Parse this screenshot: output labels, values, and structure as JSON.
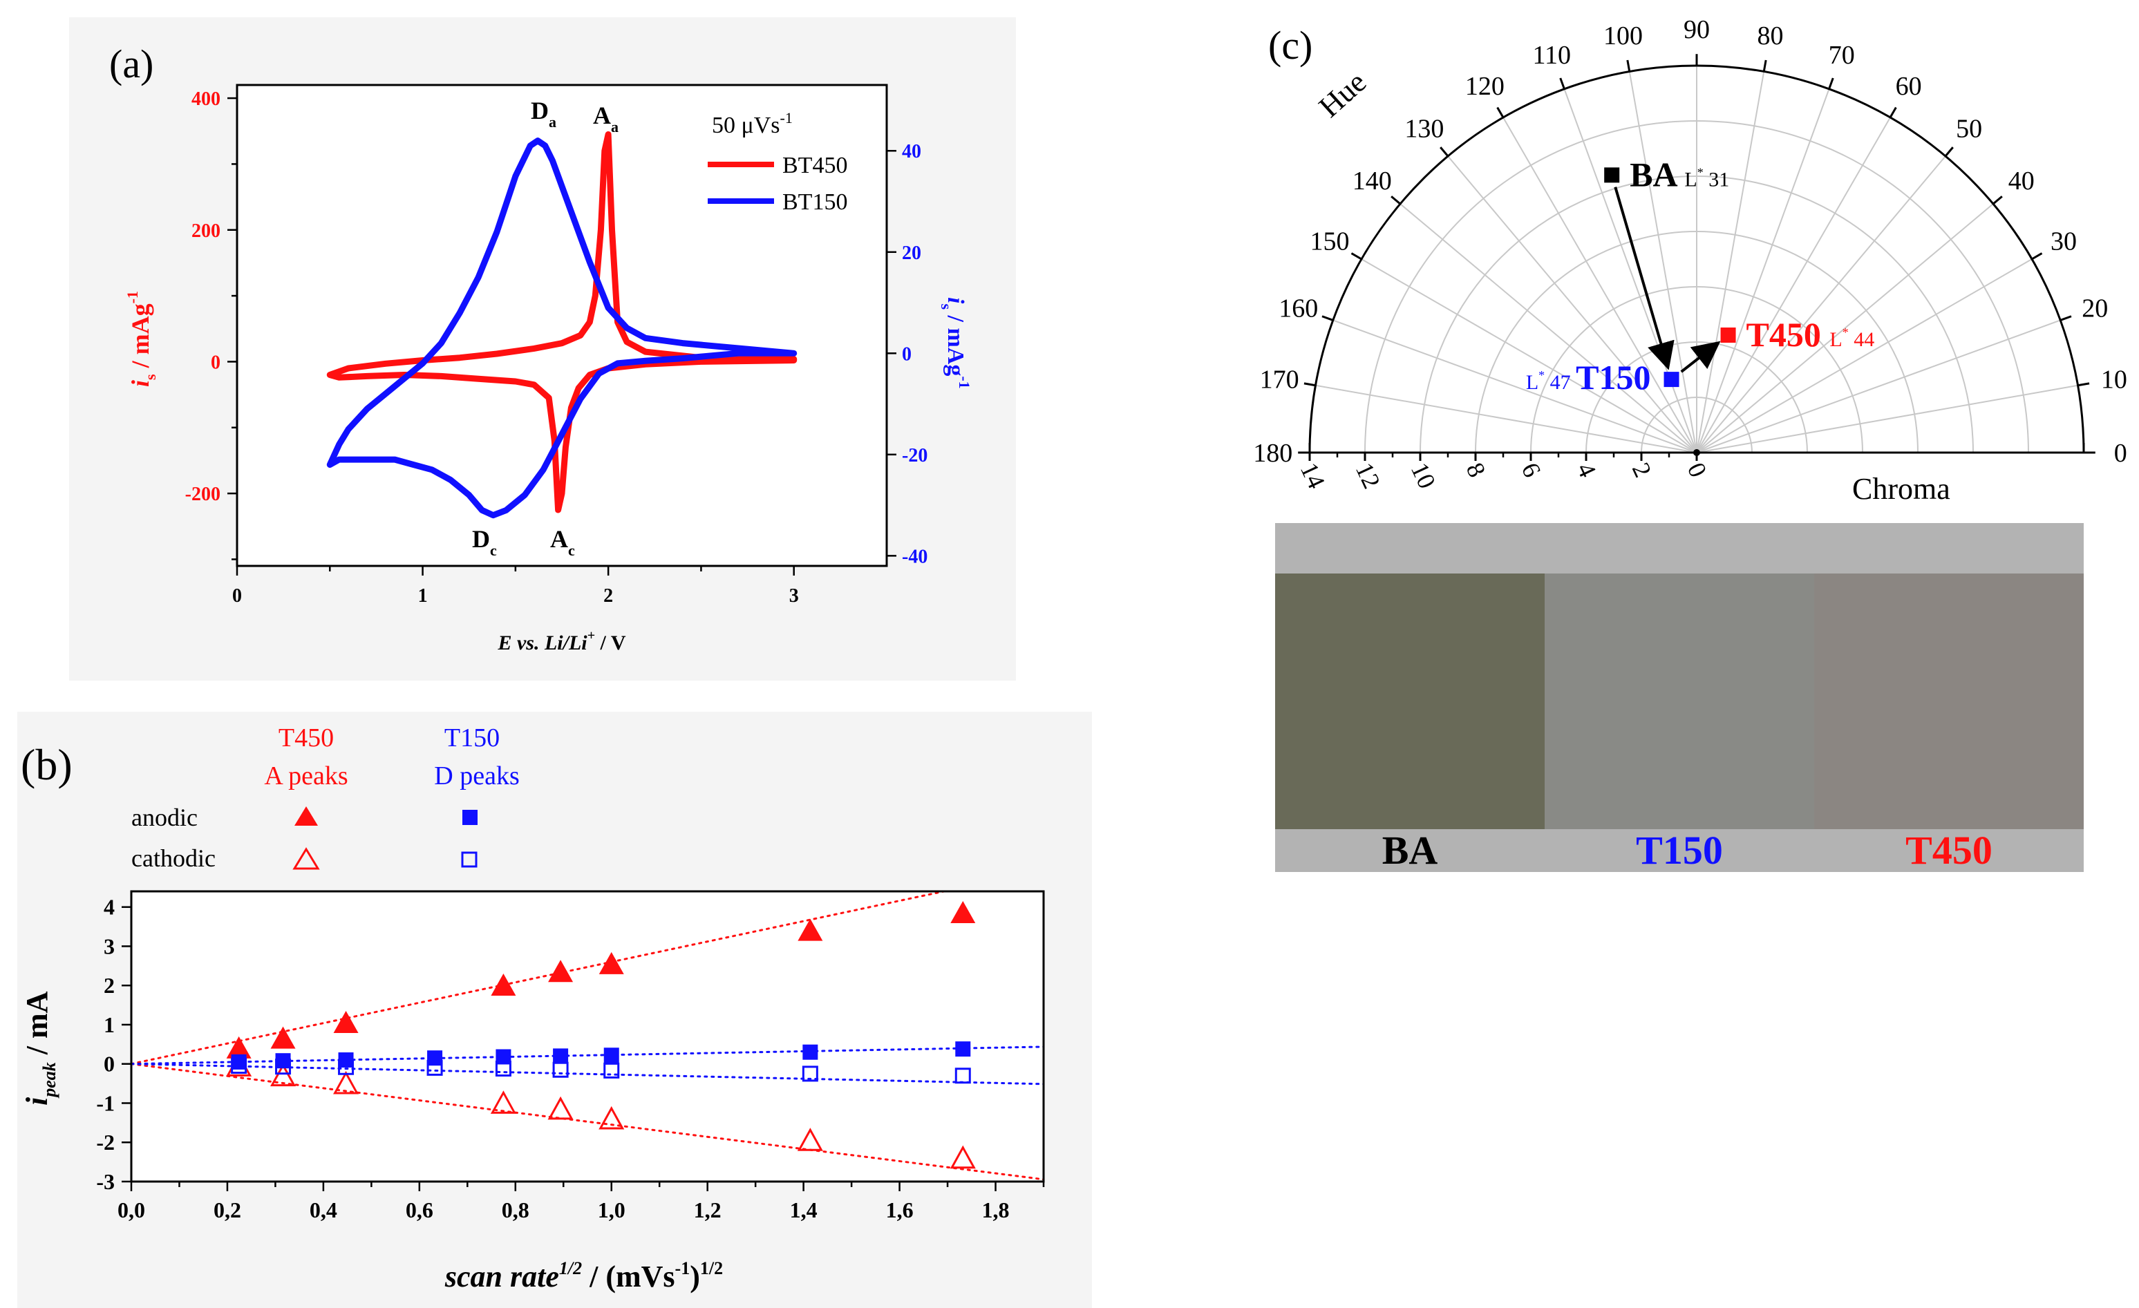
{
  "colors": {
    "red": "#ff1010",
    "blue": "#1010ff",
    "black": "#000000",
    "swatch_bg": "#b3b3b3",
    "swatch_ba": "#696a58",
    "swatch_t150": "#898a86",
    "swatch_t450": "#8b8682"
  },
  "chart_data": [
    {
      "id": "a",
      "type": "line",
      "panel_label": "(a)",
      "xlabel_parts": [
        "E vs. Li/Li",
        "+",
        " / V"
      ],
      "ylabel_left_parts": [
        "i",
        "s",
        " / mAg",
        "-1"
      ],
      "ylabel_right_parts": [
        "i",
        "s",
        " / mAg",
        "-1"
      ],
      "xlim": [
        0,
        3.5
      ],
      "ylim_left": [
        -310,
        420
      ],
      "ylim_right": [
        -42,
        53
      ],
      "x_ticks": [
        "0",
        "1",
        "2",
        "3"
      ],
      "y_ticks_left": [
        "-200",
        "0",
        "200",
        "400"
      ],
      "y_ticks_right": [
        "-40",
        "-20",
        "0",
        "20",
        "40"
      ],
      "legend_title": "50 μVs",
      "legend_title_sup": "-1",
      "series": [
        {
          "name": "BT450",
          "axis": "left",
          "color": "#ff1010",
          "x": [
            0.5,
            0.6,
            0.8,
            1.0,
            1.2,
            1.4,
            1.6,
            1.75,
            1.85,
            1.9,
            1.93,
            1.96,
            1.98,
            2.0,
            2.02,
            2.05,
            2.1,
            2.2,
            2.5,
            3.0,
            3.0,
            2.5,
            2.2,
            2.0,
            1.9,
            1.84,
            1.8,
            1.77,
            1.75,
            1.73,
            1.71,
            1.68,
            1.6,
            1.5,
            1.4,
            1.3,
            1.1,
            0.9,
            0.7,
            0.55,
            0.5
          ],
          "y": [
            -20,
            -10,
            -3,
            2,
            6,
            12,
            20,
            28,
            40,
            60,
            100,
            200,
            320,
            345,
            200,
            60,
            30,
            15,
            6,
            4,
            2,
            0,
            -4,
            -10,
            -20,
            -40,
            -70,
            -130,
            -200,
            -225,
            -120,
            -55,
            -35,
            -30,
            -28,
            -26,
            -22,
            -20,
            -22,
            -24,
            -20
          ]
        },
        {
          "name": "BT150",
          "axis": "right",
          "color": "#1010ff",
          "x": [
            0.5,
            0.55,
            0.6,
            0.7,
            0.8,
            0.9,
            1.0,
            1.1,
            1.2,
            1.3,
            1.4,
            1.5,
            1.58,
            1.62,
            1.66,
            1.7,
            1.8,
            1.9,
            2.0,
            2.1,
            2.2,
            2.4,
            2.7,
            3.0,
            3.0,
            2.7,
            2.4,
            2.2,
            2.05,
            1.95,
            1.85,
            1.75,
            1.65,
            1.55,
            1.45,
            1.38,
            1.32,
            1.25,
            1.15,
            1.05,
            0.95,
            0.85,
            0.75,
            0.65,
            0.55,
            0.5
          ],
          "y": [
            -22,
            -18,
            -15,
            -11,
            -8,
            -5,
            -2,
            2,
            8,
            15,
            24,
            35,
            41,
            42,
            41,
            38,
            28,
            18,
            9,
            5,
            3,
            2,
            1,
            0,
            0,
            0,
            -1,
            -1.5,
            -2,
            -4,
            -9,
            -16,
            -23,
            -28,
            -31,
            -32,
            -31,
            -28,
            -25,
            -23,
            -22,
            -21,
            -21,
            -21,
            -21,
            -22
          ]
        }
      ],
      "annotations": [
        {
          "text": "D",
          "sub": "a"
        },
        {
          "text": "A",
          "sub": "a"
        },
        {
          "text": "D",
          "sub": "c"
        },
        {
          "text": "A",
          "sub": "c"
        }
      ]
    },
    {
      "id": "b",
      "type": "scatter",
      "panel_label": "(b)",
      "xlabel_parts": [
        "scan rate",
        "1/2",
        " / (mVs",
        "-1",
        ")",
        "1/2"
      ],
      "ylabel_parts": [
        "i",
        "peak",
        " / mA"
      ],
      "xlim": [
        0.0,
        1.9
      ],
      "ylim": [
        -3,
        4.4
      ],
      "x_ticks": [
        "0,0",
        "0,2",
        "0,4",
        "0,6",
        "0,8",
        "1,0",
        "1,2",
        "1,4",
        "1,6",
        "1,8"
      ],
      "y_ticks": [
        "-3",
        "-2",
        "-1",
        "0",
        "1",
        "2",
        "3",
        "4"
      ],
      "legend": {
        "col_t450_title": "T450",
        "col_t450_sub": "A  peaks",
        "col_t150_title": "T150",
        "col_t150_sub": "D  peaks",
        "row_anodic": "anodic",
        "row_cathodic": "cathodic"
      },
      "x": [
        0.224,
        0.316,
        0.447,
        0.632,
        0.775,
        0.894,
        1.0,
        1.414,
        1.732
      ],
      "series": [
        {
          "name": "T450 anodic",
          "marker": "filled-triangle",
          "color": "#ff1010",
          "values": [
            0.35,
            0.6,
            1.0,
            null,
            1.95,
            2.3,
            2.5,
            3.35,
            3.8
          ]
        },
        {
          "name": "T450 cathodic",
          "marker": "open-triangle",
          "color": "#ff1010",
          "values": [
            -0.1,
            -0.35,
            -0.55,
            null,
            -1.05,
            -1.2,
            -1.45,
            -2.0,
            -2.45
          ]
        },
        {
          "name": "T150 anodic",
          "marker": "filled-square",
          "color": "#1010ff",
          "values": [
            0.05,
            0.08,
            0.1,
            0.15,
            0.18,
            0.2,
            0.22,
            0.3,
            0.38
          ]
        },
        {
          "name": "T150 cathodic",
          "marker": "open-square",
          "color": "#1010ff",
          "values": [
            -0.05,
            -0.07,
            -0.08,
            -0.1,
            -0.12,
            -0.15,
            -0.17,
            -0.25,
            -0.3
          ]
        }
      ],
      "fits": [
        {
          "name": "T450 anodic fit",
          "color": "#ff1010",
          "slope": 2.6
        },
        {
          "name": "T450 cathodic fit",
          "color": "#ff1010",
          "slope": -1.55
        },
        {
          "name": "T150 anodic fit",
          "color": "#1010ff",
          "slope": 0.23
        },
        {
          "name": "T150 cathodic fit",
          "color": "#1010ff",
          "slope": -0.27
        }
      ]
    },
    {
      "id": "c",
      "type": "polar-scatter",
      "panel_label": "(c)",
      "angle_label": "Hue",
      "radius_label": "Chroma",
      "angle_range_deg": [
        0,
        180
      ],
      "angle_ticks": [
        "0",
        "10",
        "20",
        "30",
        "40",
        "50",
        "60",
        "70",
        "80",
        "90",
        "100",
        "110",
        "120",
        "130",
        "140",
        "150",
        "160",
        "170",
        "180"
      ],
      "radius_max": 14,
      "radius_ticks": [
        "14",
        "12",
        "10",
        "8",
        "6",
        "4",
        "2",
        "0"
      ],
      "points": [
        {
          "name": "BA",
          "hue": 107,
          "chroma": 10.5,
          "lightness_label": "L",
          "lightness": "31",
          "color": "#000000"
        },
        {
          "name": "T150",
          "hue": 109,
          "chroma": 2.8,
          "lightness_label": "L",
          "lightness": "47",
          "color": "#1010ff"
        },
        {
          "name": "T450",
          "hue": 75,
          "chroma": 4.4,
          "lightness_label": "L",
          "lightness": "44",
          "color": "#ff1010"
        }
      ],
      "arrows": [
        {
          "from": "BA",
          "to": "T150"
        },
        {
          "from": "T150",
          "to": "T450"
        }
      ]
    }
  ],
  "swatches": [
    {
      "label": "BA",
      "color_key": "swatch_ba",
      "label_color": "#000000"
    },
    {
      "label": "T150",
      "color_key": "swatch_t150",
      "label_color": "#1010ff"
    },
    {
      "label": "T450",
      "color_key": "swatch_t450",
      "label_color": "#ff1010"
    }
  ]
}
